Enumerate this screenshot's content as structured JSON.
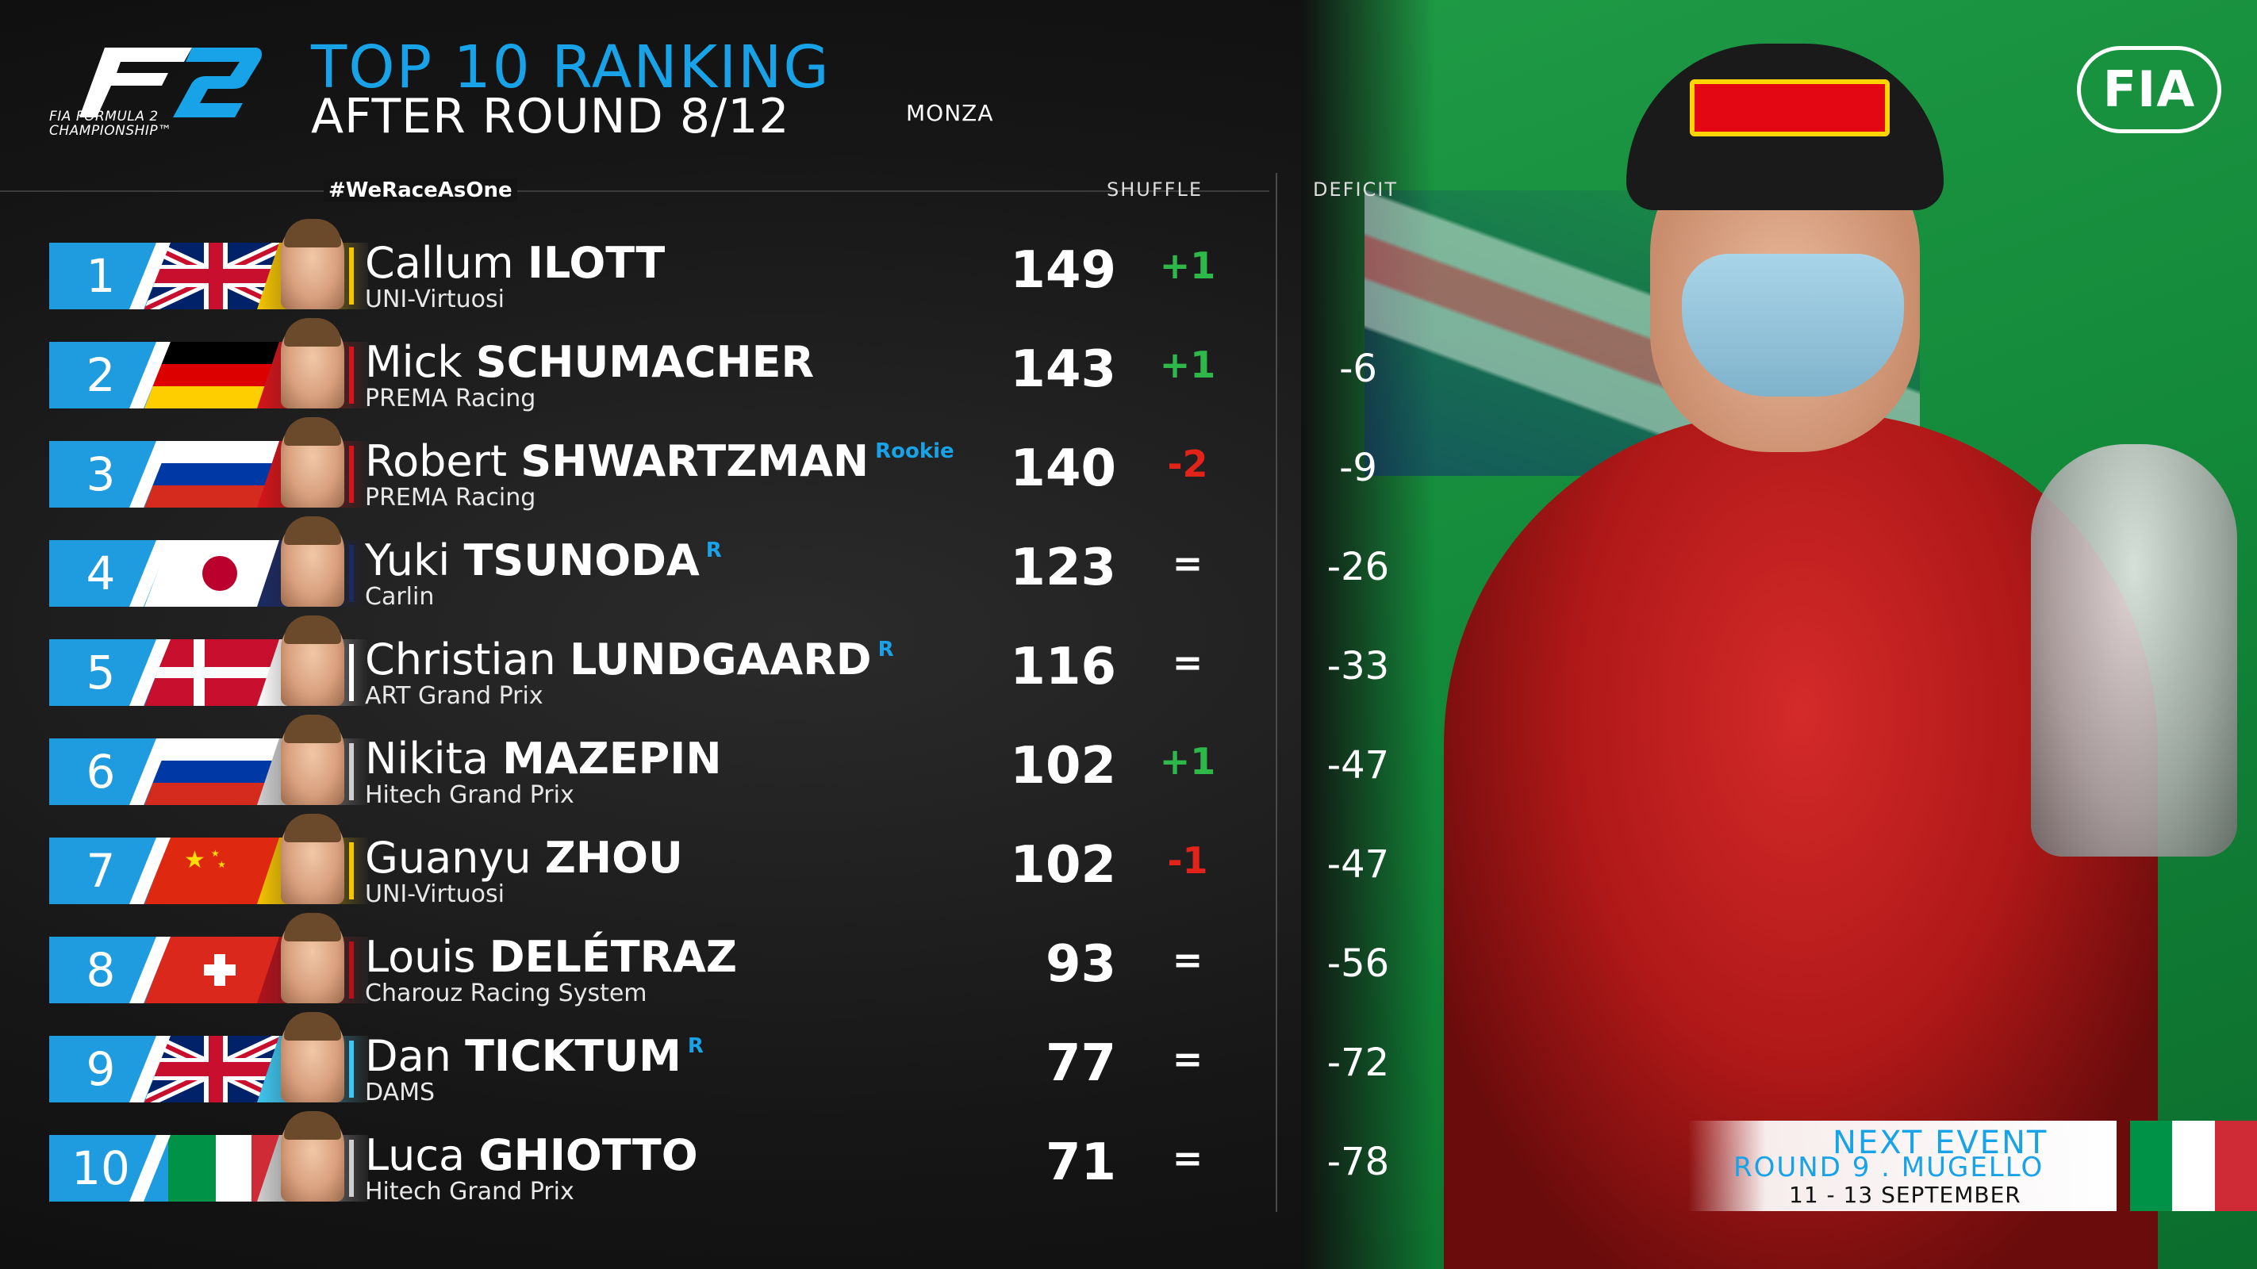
{
  "header": {
    "logo_text": "F2",
    "logo_subtitle_1": "FIA FORMULA 2",
    "logo_subtitle_2": "CHAMPIONSHIP™",
    "title": "TOP 10 RANKING",
    "subtitle": "AFTER ROUND 8/12",
    "location": "MONZA",
    "hashtag": "#WeRaceAsOne",
    "col_shuffle": "SHUFFLE",
    "col_deficit": "DEFICIT",
    "fia_logo": "FIA"
  },
  "colors": {
    "accent_blue": "#18a3e8",
    "position_box": "#1f9be0",
    "gain": "#2fb84a",
    "loss": "#e2231a"
  },
  "rankings": [
    {
      "position": "1",
      "first_name": "Callum",
      "last_name": "ILOTT",
      "rookie": "",
      "team": "UNI-Virtuosi",
      "points": "149",
      "shuffle": "+1",
      "shuffle_dir": "up",
      "deficit": "",
      "flag": "gb-flag-icon",
      "team_color": "#f5c400"
    },
    {
      "position": "2",
      "first_name": "Mick",
      "last_name": "SCHUMACHER",
      "rookie": "",
      "team": "PREMA Racing",
      "points": "143",
      "shuffle": "+1",
      "shuffle_dir": "up",
      "deficit": "-6",
      "flag": "de-flag-icon",
      "team_color": "#d7141a"
    },
    {
      "position": "3",
      "first_name": "Robert",
      "last_name": "SHWARTZMAN",
      "rookie": "Rookie",
      "team": "PREMA Racing",
      "points": "140",
      "shuffle": "-2",
      "shuffle_dir": "down",
      "deficit": "-9",
      "flag": "ru-flag-icon",
      "team_color": "#d7141a"
    },
    {
      "position": "4",
      "first_name": "Yuki",
      "last_name": "TSUNODA",
      "rookie": "R",
      "team": "Carlin",
      "points": "123",
      "shuffle": "=",
      "shuffle_dir": "same",
      "deficit": "-26",
      "flag": "jp-flag-icon",
      "team_color": "#1c2a63"
    },
    {
      "position": "5",
      "first_name": "Christian",
      "last_name": "LUNDGAARD",
      "rookie": "R",
      "team": "ART Grand Prix",
      "points": "116",
      "shuffle": "=",
      "shuffle_dir": "same",
      "deficit": "-33",
      "flag": "dk-flag-icon",
      "team_color": "#ffffff"
    },
    {
      "position": "6",
      "first_name": "Nikita",
      "last_name": "MAZEPIN",
      "rookie": "",
      "team": "Hitech Grand Prix",
      "points": "102",
      "shuffle": "+1",
      "shuffle_dir": "up",
      "deficit": "-47",
      "flag": "ru-flag-icon",
      "team_color": "#cfcfcf"
    },
    {
      "position": "7",
      "first_name": "Guanyu",
      "last_name": "ZHOU",
      "rookie": "",
      "team": "UNI-Virtuosi",
      "points": "102",
      "shuffle": "-1",
      "shuffle_dir": "down",
      "deficit": "-47",
      "flag": "cn-flag-icon",
      "team_color": "#f5c400"
    },
    {
      "position": "8",
      "first_name": "Louis",
      "last_name": "DELÉTRAZ",
      "rookie": "",
      "team": "Charouz Racing System",
      "points": "93",
      "shuffle": "=",
      "shuffle_dir": "same",
      "deficit": "-56",
      "flag": "ch-flag-icon",
      "team_color": "#b3121c"
    },
    {
      "position": "9",
      "first_name": "Dan",
      "last_name": "TICKTUM",
      "rookie": "R",
      "team": "DAMS",
      "points": "77",
      "shuffle": "=",
      "shuffle_dir": "same",
      "deficit": "-72",
      "flag": "gb-flag-icon",
      "team_color": "#3ec6f0"
    },
    {
      "position": "10",
      "first_name": "Luca",
      "last_name": "GHIOTTO",
      "rookie": "",
      "team": "Hitech Grand Prix",
      "points": "71",
      "shuffle": "=",
      "shuffle_dir": "same",
      "deficit": "-78",
      "flag": "it-flag-icon",
      "team_color": "#cfcfcf"
    }
  ],
  "next_event": {
    "title": "NEXT EVENT",
    "round": "ROUND 9 . MUGELLO",
    "dates": "11 - 13 SEPTEMBER",
    "flag": "it-flag-icon"
  }
}
